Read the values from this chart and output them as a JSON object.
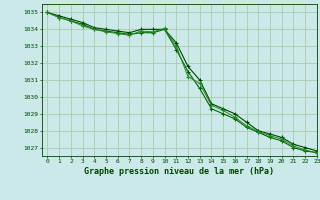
{
  "x": [
    0,
    1,
    2,
    3,
    4,
    5,
    6,
    7,
    8,
    9,
    10,
    11,
    12,
    13,
    14,
    15,
    16,
    17,
    18,
    19,
    20,
    21,
    22,
    23
  ],
  "line1": [
    1035.0,
    1034.8,
    1034.6,
    1034.4,
    1034.1,
    1034.0,
    1033.9,
    1033.8,
    1034.0,
    1034.0,
    1034.0,
    1033.2,
    1031.8,
    1031.0,
    1029.6,
    1029.3,
    1029.0,
    1028.5,
    1028.0,
    1027.8,
    1027.6,
    1027.2,
    1027.0,
    1026.8
  ],
  "line2": [
    1035.0,
    1034.7,
    1034.5,
    1034.3,
    1034.0,
    1033.9,
    1033.8,
    1033.7,
    1033.8,
    1033.8,
    1034.0,
    1032.8,
    1031.5,
    1030.5,
    1029.3,
    1029.0,
    1028.7,
    1028.2,
    1027.9,
    1027.6,
    1027.4,
    1027.0,
    1026.8,
    1026.7
  ],
  "line3": [
    1035.0,
    1034.7,
    1034.5,
    1034.2,
    1034.0,
    1033.85,
    1033.75,
    1033.65,
    1033.9,
    1033.85,
    1034.05,
    1033.0,
    1031.2,
    1030.8,
    1029.5,
    1029.2,
    1028.8,
    1028.3,
    1027.95,
    1027.7,
    1027.5,
    1027.1,
    1026.85,
    1026.7
  ],
  "background_color": "#cce9e9",
  "grid_color": "#aaccaa",
  "line_color1": "#004400",
  "line_color2": "#006600",
  "line_color3": "#228822",
  "xlabel": "Graphe pression niveau de la mer (hPa)",
  "ylim": [
    1026.5,
    1035.5
  ],
  "xlim": [
    -0.5,
    23
  ],
  "yticks": [
    1027,
    1028,
    1029,
    1030,
    1031,
    1032,
    1033,
    1034,
    1035
  ],
  "xticks": [
    0,
    1,
    2,
    3,
    4,
    5,
    6,
    7,
    8,
    9,
    10,
    11,
    12,
    13,
    14,
    15,
    16,
    17,
    18,
    19,
    20,
    21,
    22,
    23
  ]
}
